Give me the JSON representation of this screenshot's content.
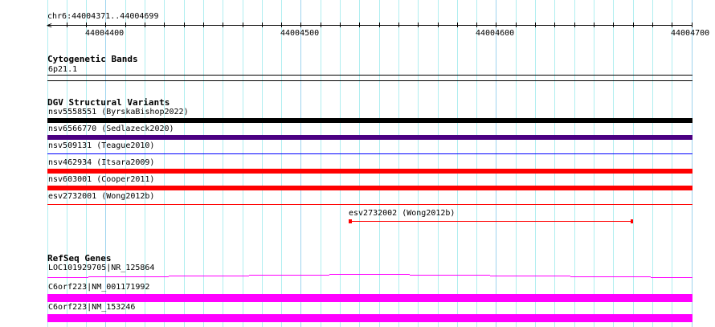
{
  "ruler": {
    "region": "chr6:44004371..44004699",
    "labels": [
      "44004400",
      "44004500",
      "44004600",
      "44004700"
    ],
    "start_bp": 44004370,
    "end_bp": 44004700,
    "tick_interval_bp": 10
  },
  "tracks": {
    "cytoband": {
      "title": "Cytogenetic Bands",
      "band": "6p21.1"
    },
    "dgv": {
      "title": "DGV Structural Variants",
      "items": [
        {
          "label": "nsv5558551 (ByrskaBishop2022)",
          "color": "#000000",
          "style": "thick"
        },
        {
          "label": "nsv6566770 (Sedlazeck2020)",
          "color": "#4b0082",
          "style": "thick"
        },
        {
          "label": "nsv509131 (Teague2010)",
          "color": "#0000ff",
          "style": "thin"
        },
        {
          "label": "nsv462934 (Itsara2009)",
          "color": "#ff0000",
          "style": "thick"
        },
        {
          "label": "nsv603001 (Cooper2011)",
          "color": "#ff0000",
          "style": "thick"
        },
        {
          "label": "esv2732001 (Wong2012b)",
          "color": "#ff0000",
          "style": "thin"
        }
      ],
      "partial": {
        "label": "esv2732002 (Wong2012b)",
        "color": "#ff0000"
      }
    },
    "refseq": {
      "title": "RefSeq Genes",
      "genes": [
        {
          "label": "LOC101929705|NR_125864",
          "color": "#ff00ff"
        },
        {
          "label": "C6orf223|NM_001171992",
          "color": "#ff00ff"
        },
        {
          "label": "C6orf223|NM_153246",
          "color": "#ff00ff"
        }
      ]
    }
  }
}
